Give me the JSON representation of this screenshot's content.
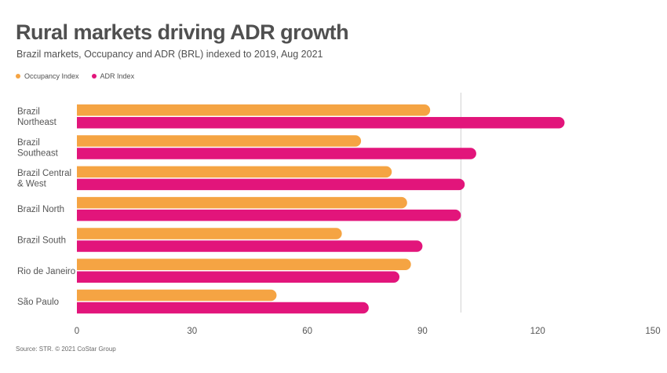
{
  "colors": {
    "occupancy": "#f5a443",
    "adr": "#e2157b",
    "gridline": "#d0d0d0"
  },
  "legend": {
    "occupancy_label": "Occupancy Index",
    "adr_label": "ADR Index"
  },
  "source": "Source: STR. © 2021 CoStar Group",
  "chart_data": {
    "type": "bar",
    "orientation": "horizontal",
    "title": "Rural markets driving ADR growth",
    "subtitle": "Brazil markets, Occupancy and ADR (BRL) indexed to 2019, Aug 2021",
    "categories": [
      [
        "Brazil",
        "Northeast"
      ],
      [
        "Brazil",
        "Southeast"
      ],
      [
        "Brazil Central",
        "& West"
      ],
      [
        "Brazil North"
      ],
      [
        "Brazil South"
      ],
      [
        "Rio de Janeiro"
      ],
      [
        "São Paulo"
      ]
    ],
    "series": [
      {
        "name": "Occupancy Index",
        "values": [
          92,
          74,
          82,
          86,
          69,
          87,
          52
        ]
      },
      {
        "name": "ADR Index",
        "values": [
          127,
          104,
          101,
          100,
          90,
          84,
          76
        ]
      }
    ],
    "xlim": [
      0,
      150
    ],
    "xticks": [
      0,
      30,
      60,
      90,
      120,
      150
    ],
    "reference_line": 100,
    "xlabel": "",
    "ylabel": ""
  }
}
